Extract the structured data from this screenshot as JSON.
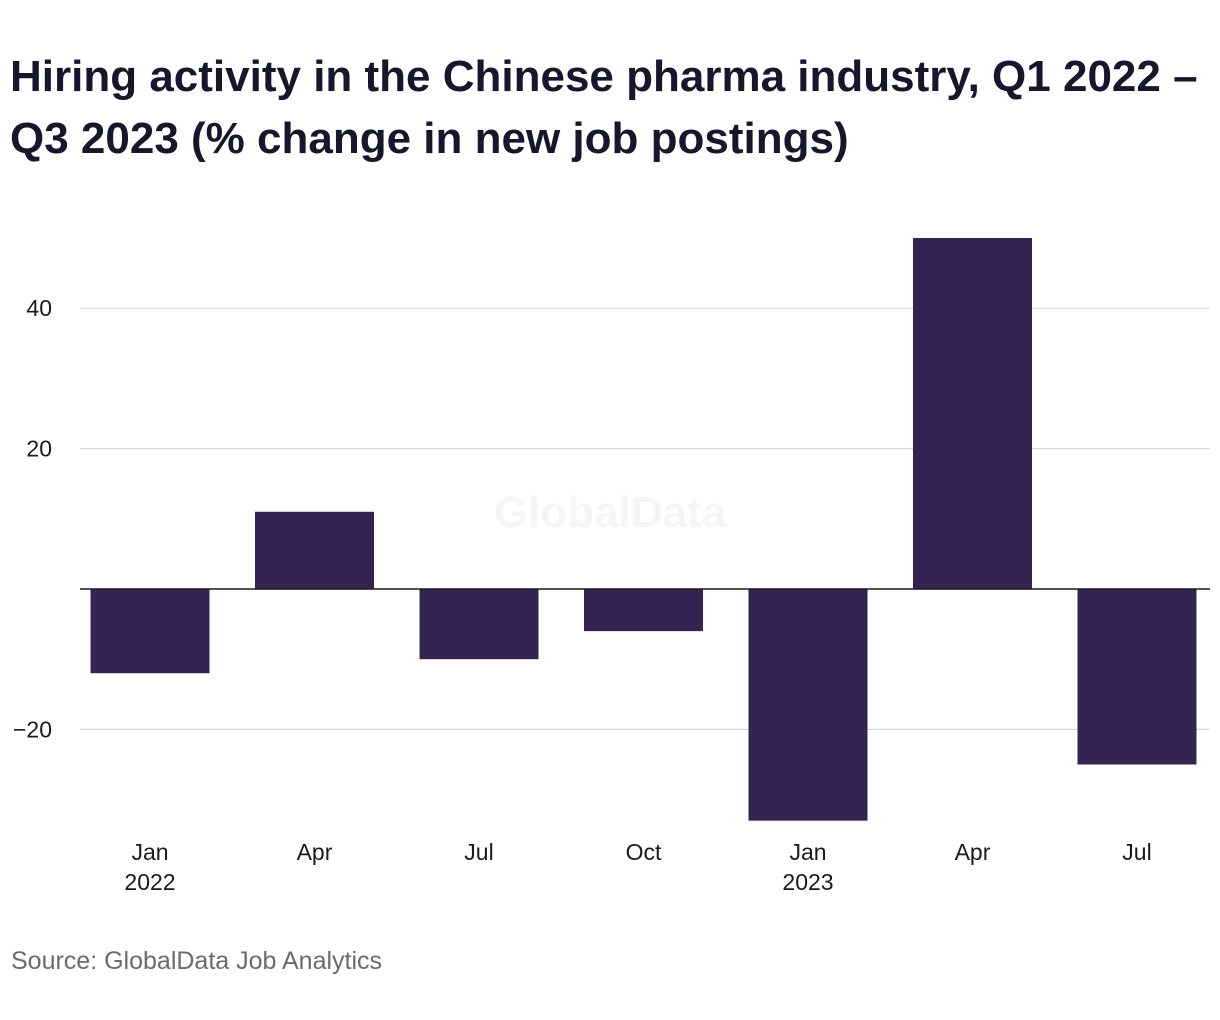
{
  "title": "Hiring activity in the Chinese pharma industry, Q1 2022 – Q3 2023 (% change in new job postings)",
  "source": "Source: GlobalData Job Analytics",
  "watermark": "GlobalData",
  "colors": {
    "bar": "#352451",
    "grid": "#d9d9d9",
    "zero_line": "#1a1a1a"
  },
  "chart_data": {
    "type": "bar",
    "categories": [
      "Q1 2022",
      "Q2 2022",
      "Q3 2022",
      "Q4 2022",
      "Q1 2023",
      "Q2 2023",
      "Q3 2023"
    ],
    "x_tick_labels": [
      {
        "line1": "Jan",
        "line2": "2022"
      },
      {
        "line1": "Apr",
        "line2": ""
      },
      {
        "line1": "Jul",
        "line2": ""
      },
      {
        "line1": "Oct",
        "line2": ""
      },
      {
        "line1": "Jan",
        "line2": "2023"
      },
      {
        "line1": "Apr",
        "line2": ""
      },
      {
        "line1": "Jul",
        "line2": ""
      }
    ],
    "values": [
      -12,
      11,
      -10,
      -6,
      -33,
      50,
      -25
    ],
    "y_ticks": [
      -20,
      20,
      40
    ],
    "y_tick_labels": [
      "−20",
      "20",
      "40"
    ],
    "ylim": [
      -33,
      50
    ],
    "grid": true,
    "xlabel": "",
    "ylabel": ""
  }
}
